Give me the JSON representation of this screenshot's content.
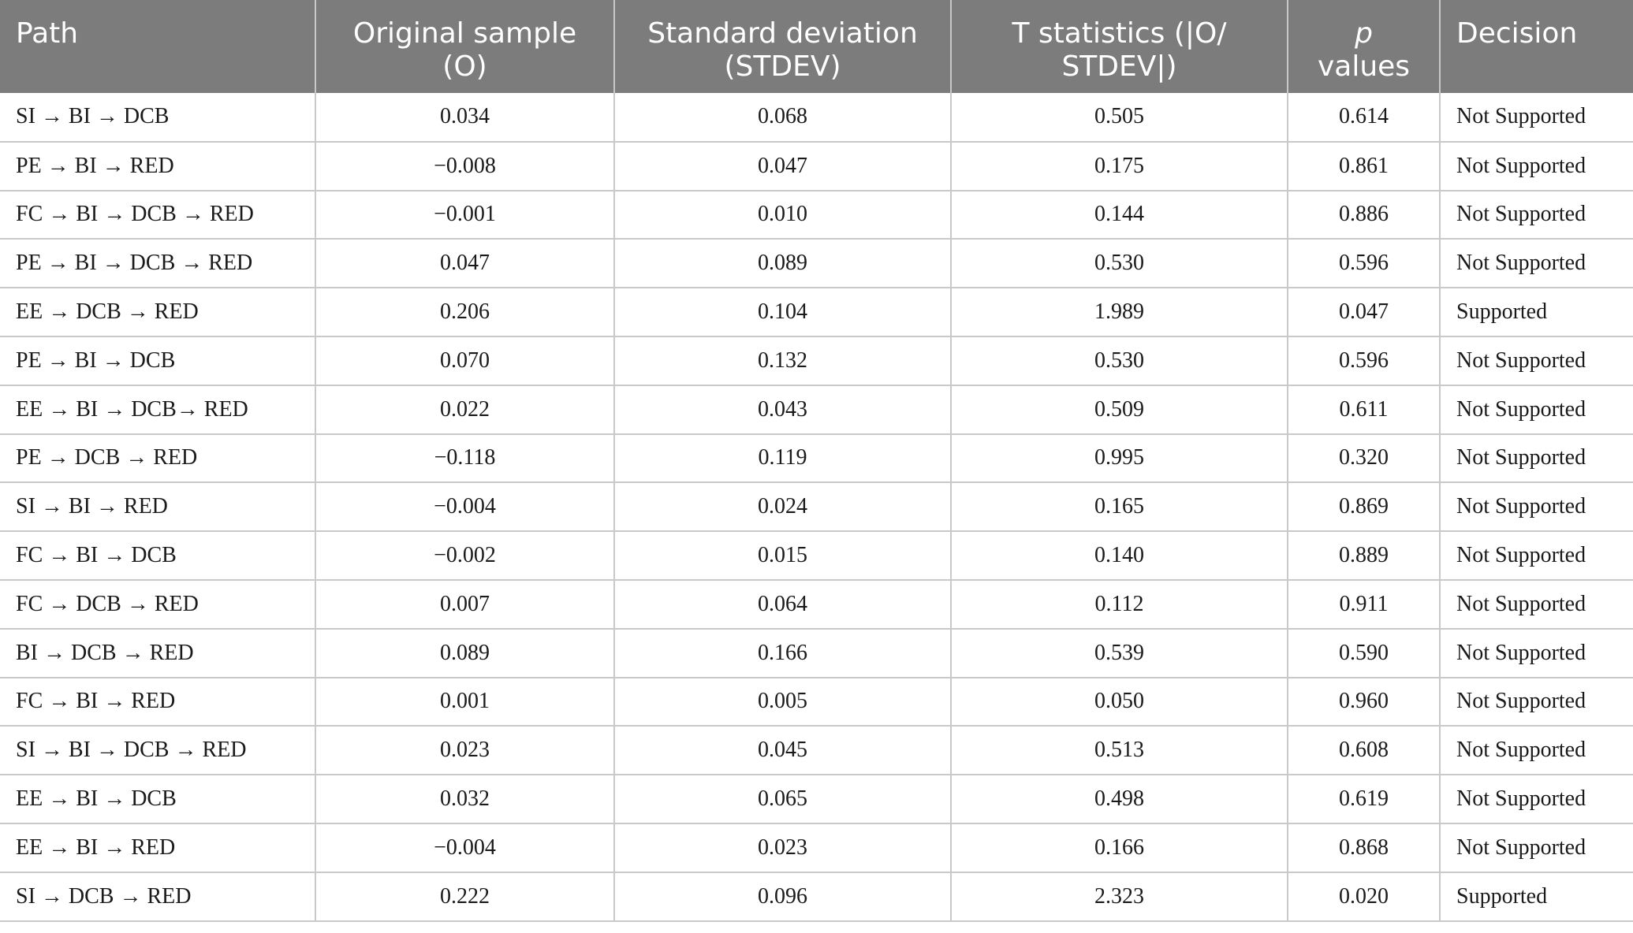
{
  "table": {
    "headers": {
      "path": "Path",
      "original_sample": "Original sample (O)",
      "stdev": "Standard deviation (STDEV)",
      "tstat": "T statistics (|O/ STDEV|)",
      "p_italic": "p",
      "p_rest": " values",
      "decision": "Decision"
    },
    "rows": [
      {
        "path": "SI → BI → DCB",
        "o": "0.034",
        "stdev": "0.068",
        "t": "0.505",
        "p": "0.614",
        "decision": "Not Supported"
      },
      {
        "path": "PE → BI → RED",
        "o": "−0.008",
        "stdev": "0.047",
        "t": "0.175",
        "p": "0.861",
        "decision": "Not Supported"
      },
      {
        "path": "FC → BI → DCB → RED",
        "o": "−0.001",
        "stdev": "0.010",
        "t": "0.144",
        "p": "0.886",
        "decision": "Not Supported"
      },
      {
        "path": "PE → BI → DCB → RED",
        "o": "0.047",
        "stdev": "0.089",
        "t": "0.530",
        "p": "0.596",
        "decision": "Not Supported"
      },
      {
        "path": "EE → DCB → RED",
        "o": "0.206",
        "stdev": "0.104",
        "t": "1.989",
        "p": "0.047",
        "decision": "Supported"
      },
      {
        "path": "PE → BI → DCB",
        "o": "0.070",
        "stdev": "0.132",
        "t": "0.530",
        "p": "0.596",
        "decision": "Not Supported"
      },
      {
        "path": "EE → BI → DCB→ RED",
        "o": "0.022",
        "stdev": "0.043",
        "t": "0.509",
        "p": "0.611",
        "decision": "Not Supported"
      },
      {
        "path": "PE → DCB → RED",
        "o": "−0.118",
        "stdev": "0.119",
        "t": "0.995",
        "p": "0.320",
        "decision": "Not Supported"
      },
      {
        "path": "SI → BI → RED",
        "o": "−0.004",
        "stdev": "0.024",
        "t": "0.165",
        "p": "0.869",
        "decision": "Not Supported"
      },
      {
        "path": "FC → BI → DCB",
        "o": "−0.002",
        "stdev": "0.015",
        "t": "0.140",
        "p": "0.889",
        "decision": "Not Supported"
      },
      {
        "path": "FC → DCB → RED",
        "o": "0.007",
        "stdev": "0.064",
        "t": "0.112",
        "p": "0.911",
        "decision": "Not Supported"
      },
      {
        "path": "BI → DCB → RED",
        "o": "0.089",
        "stdev": "0.166",
        "t": "0.539",
        "p": "0.590",
        "decision": "Not Supported"
      },
      {
        "path": "FC → BI → RED",
        "o": "0.001",
        "stdev": "0.005",
        "t": "0.050",
        "p": "0.960",
        "decision": "Not Supported"
      },
      {
        "path": "SI → BI → DCB → RED",
        "o": "0.023",
        "stdev": "0.045",
        "t": "0.513",
        "p": "0.608",
        "decision": "Not Supported"
      },
      {
        "path": "EE → BI → DCB",
        "o": "0.032",
        "stdev": "0.065",
        "t": "0.498",
        "p": "0.619",
        "decision": "Not Supported"
      },
      {
        "path": "EE → BI → RED",
        "o": "−0.004",
        "stdev": "0.023",
        "t": "0.166",
        "p": "0.868",
        "decision": "Not Supported"
      },
      {
        "path": "SI → DCB → RED",
        "o": "0.222",
        "stdev": "0.096",
        "t": "2.323",
        "p": "0.020",
        "decision": "Supported"
      }
    ]
  }
}
